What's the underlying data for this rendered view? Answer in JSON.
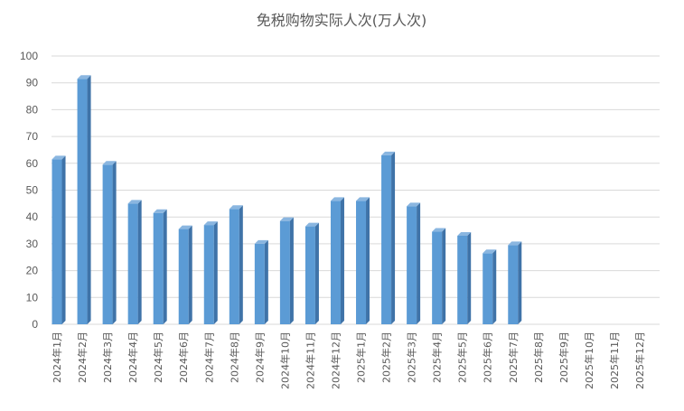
{
  "chart_data": {
    "type": "bar",
    "title": "免税购物实际人次(万人次)",
    "xlabel": "",
    "ylabel": "",
    "ylim": [
      0,
      100
    ],
    "yticks": [
      0,
      10,
      20,
      30,
      40,
      50,
      60,
      70,
      80,
      90,
      100
    ],
    "grid": true,
    "legend": "none",
    "categories": [
      "2024年1月",
      "2024年2月",
      "2024年3月",
      "2024年4月",
      "2024年5月",
      "2024年6月",
      "2024年7月",
      "2024年8月",
      "2024年9月",
      "2024年10月",
      "2024年11月",
      "2024年12月",
      "2025年1月",
      "2025年2月",
      "2025年3月",
      "2025年4月",
      "2025年5月",
      "2025年6月",
      "2025年7月",
      "2025年8月",
      "2025年9月",
      "2025年10月",
      "2025年11月",
      "2025年12月"
    ],
    "values": [
      61.5,
      91.5,
      59.5,
      45,
      41.5,
      35.5,
      37,
      43,
      30,
      38.5,
      36.5,
      46,
      46,
      63,
      44,
      34.5,
      33,
      26.5,
      29.5,
      null,
      null,
      null,
      null,
      null
    ],
    "colors": {
      "bar_front": "#5b9bd5",
      "bar_side": "#3f73a8",
      "bar_top": "#8ab6e0"
    }
  }
}
